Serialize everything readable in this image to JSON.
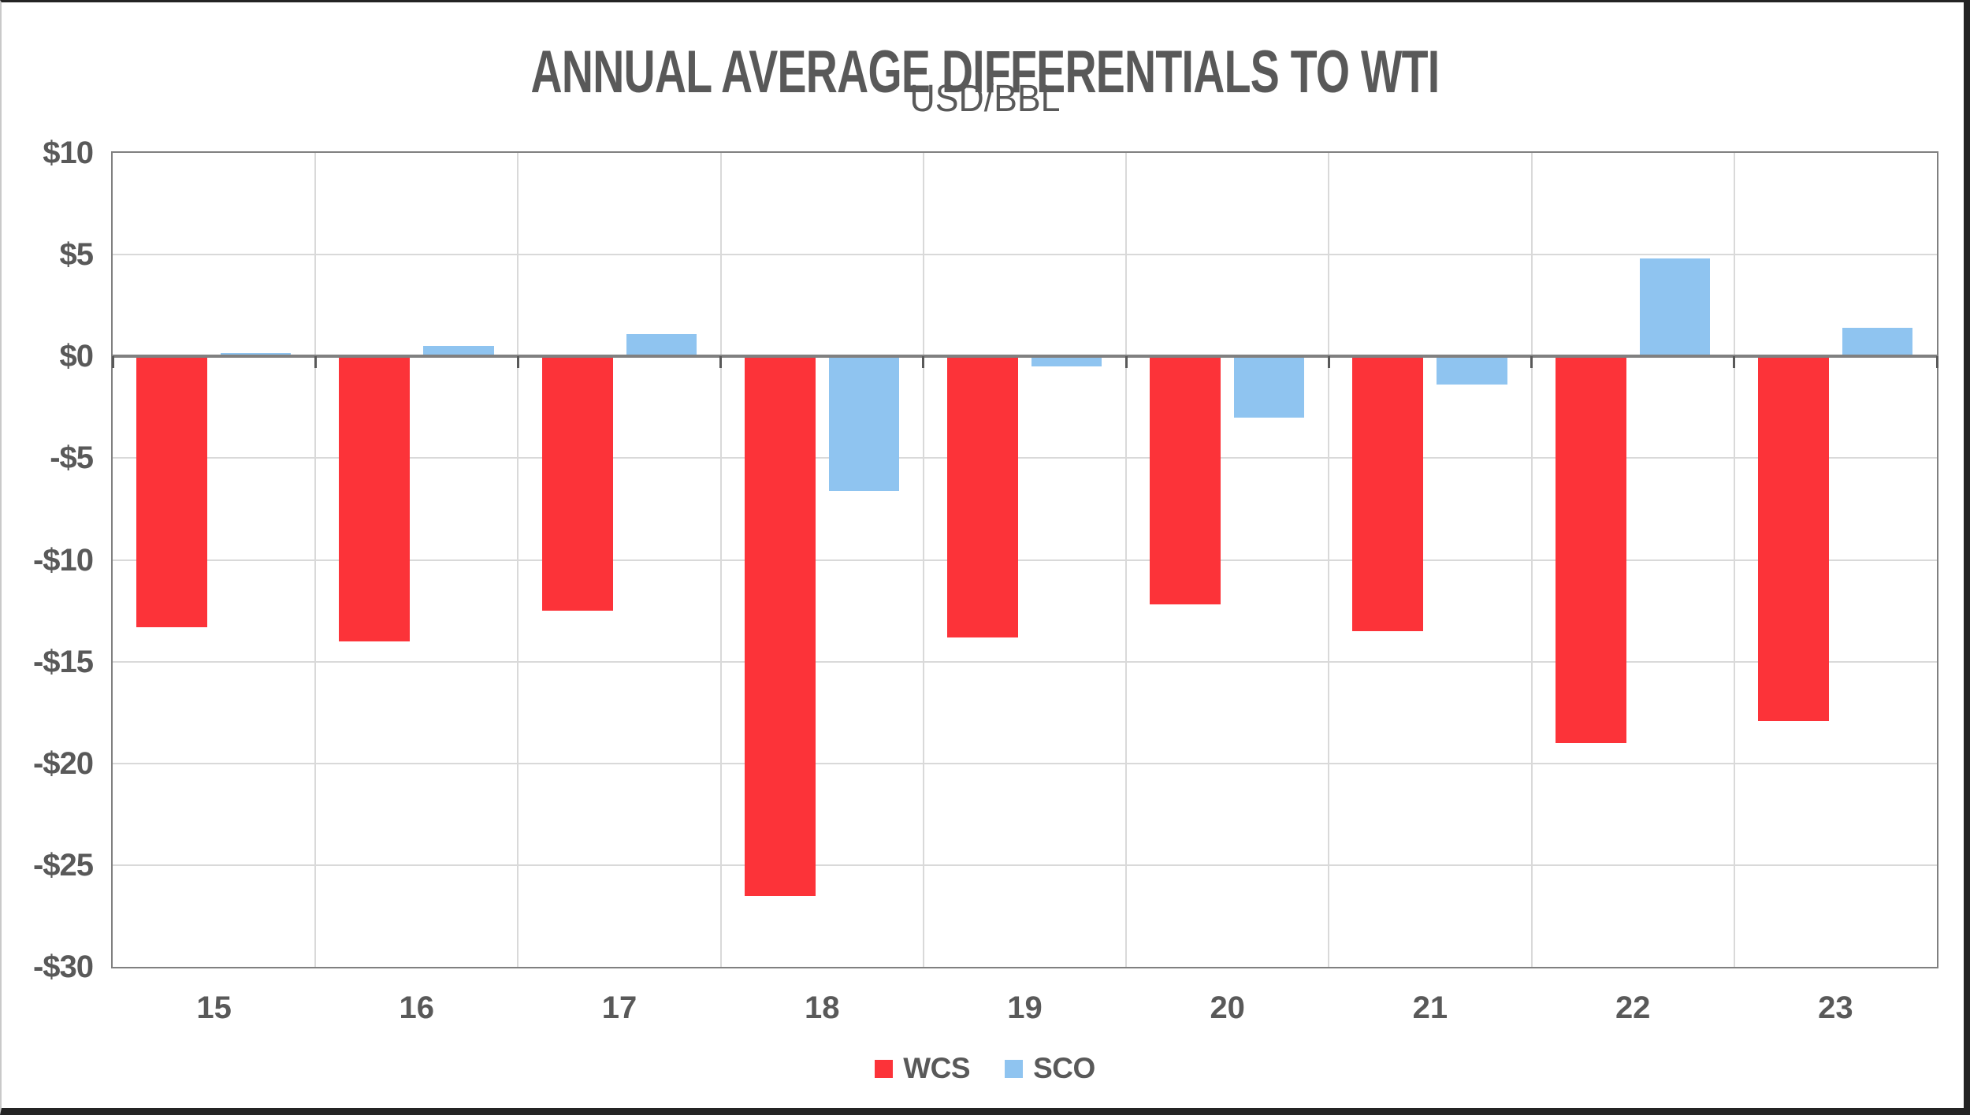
{
  "window": {
    "background": "#ffffff",
    "frame_border_color": "#242424"
  },
  "chart_data": {
    "type": "bar",
    "title": "ANNUAL AVERAGE DIFFERENTIALS TO WTI",
    "subtitle": "USD/BBL",
    "categories": [
      "15",
      "16",
      "17",
      "18",
      "19",
      "20",
      "21",
      "22",
      "23"
    ],
    "series": [
      {
        "name": "WCS",
        "color": "#FC3339",
        "values": [
          -13.3,
          -14.0,
          -12.5,
          -26.5,
          -13.8,
          -12.2,
          -13.5,
          -19.0,
          -17.9
        ]
      },
      {
        "name": "SCO",
        "color": "#8FC4F0",
        "values": [
          0.15,
          0.5,
          1.1,
          -6.6,
          -0.5,
          -3.0,
          -1.4,
          4.8,
          1.4
        ]
      }
    ],
    "ylim": [
      -30,
      10
    ],
    "ytick_step": 5,
    "ytick_labels": [
      "$10",
      "$5",
      "$0",
      "-$5",
      "-$10",
      "-$15",
      "-$20",
      "-$25",
      "-$30"
    ],
    "xlabel": "",
    "ylabel": "",
    "grid": true,
    "legend_position": "bottom",
    "colors": {
      "text": "#595959",
      "gridline": "#d9d9d9",
      "plot_border": "#808080",
      "zero_axis": "#808080",
      "axis_tick": "#595959"
    }
  }
}
